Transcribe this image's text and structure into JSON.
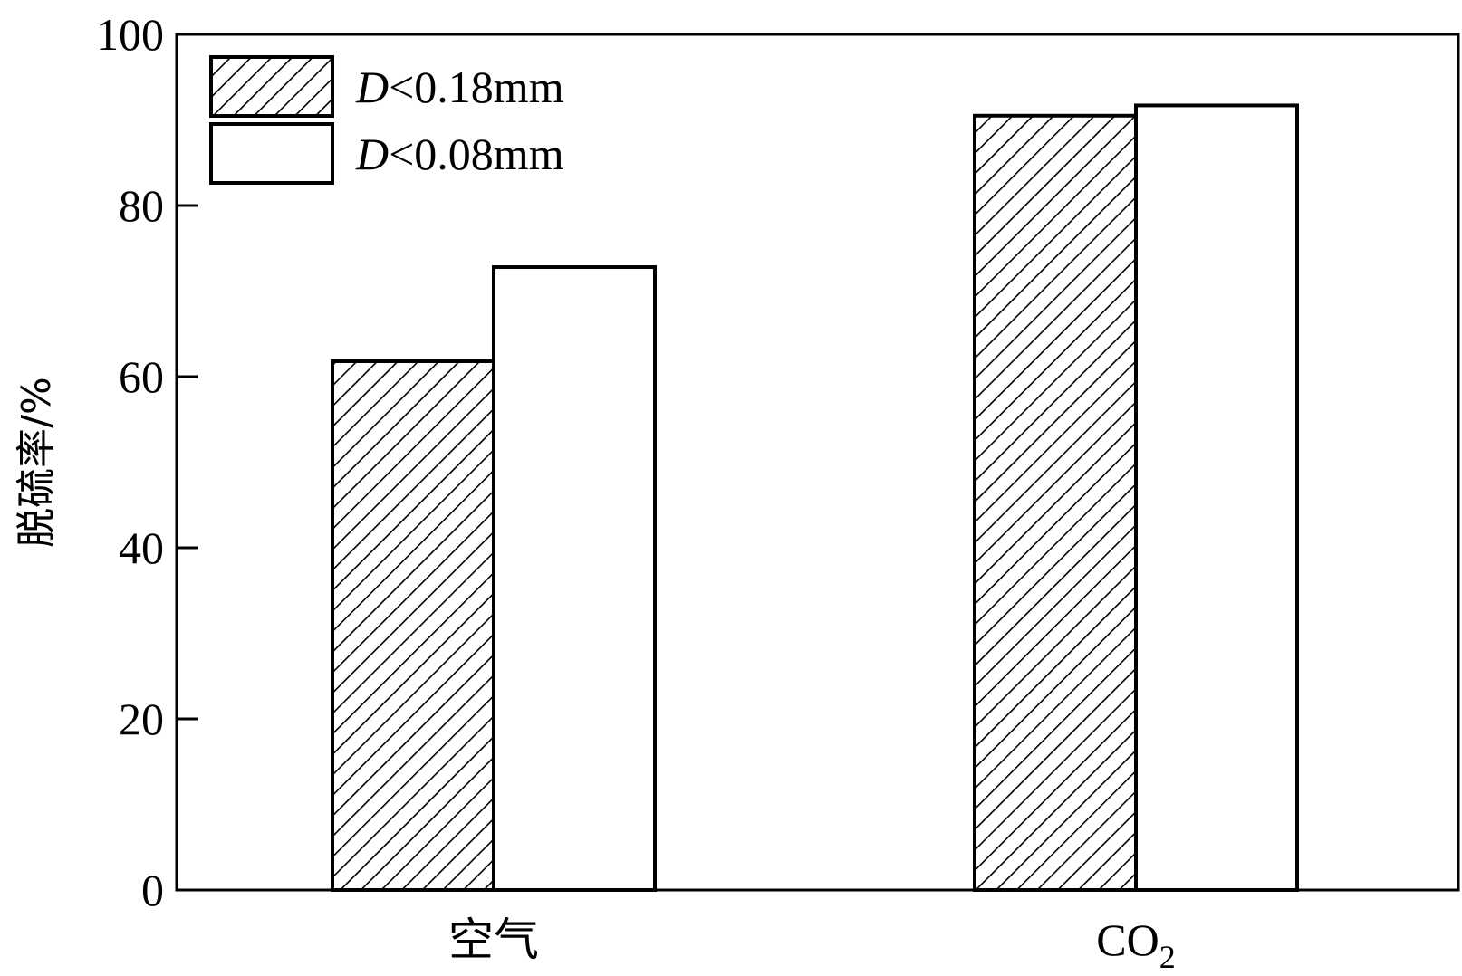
{
  "chart_data": {
    "type": "bar",
    "categories": [
      "空气",
      "CO2"
    ],
    "category_labels": [
      {
        "main": "空气",
        "sub": ""
      },
      {
        "main": "CO",
        "sub": "2"
      }
    ],
    "series": [
      {
        "name": "D<0.18mm",
        "name_italic": "D",
        "name_rest": "<0.18mm",
        "fill": "hatch",
        "values": [
          61.8,
          90.5
        ]
      },
      {
        "name": "D<0.08mm",
        "name_italic": "D",
        "name_rest": "<0.08mm",
        "fill": "white",
        "values": [
          72.8,
          91.7
        ]
      }
    ],
    "ylabel": "脱硫率/%",
    "xlabel": "",
    "title": "",
    "ylim": [
      0,
      100
    ],
    "yticks": [
      0,
      20,
      40,
      60,
      80,
      100
    ],
    "grid": false,
    "legend": "top-left",
    "colors": {
      "stroke": "#000000",
      "background": "#ffffff"
    }
  }
}
